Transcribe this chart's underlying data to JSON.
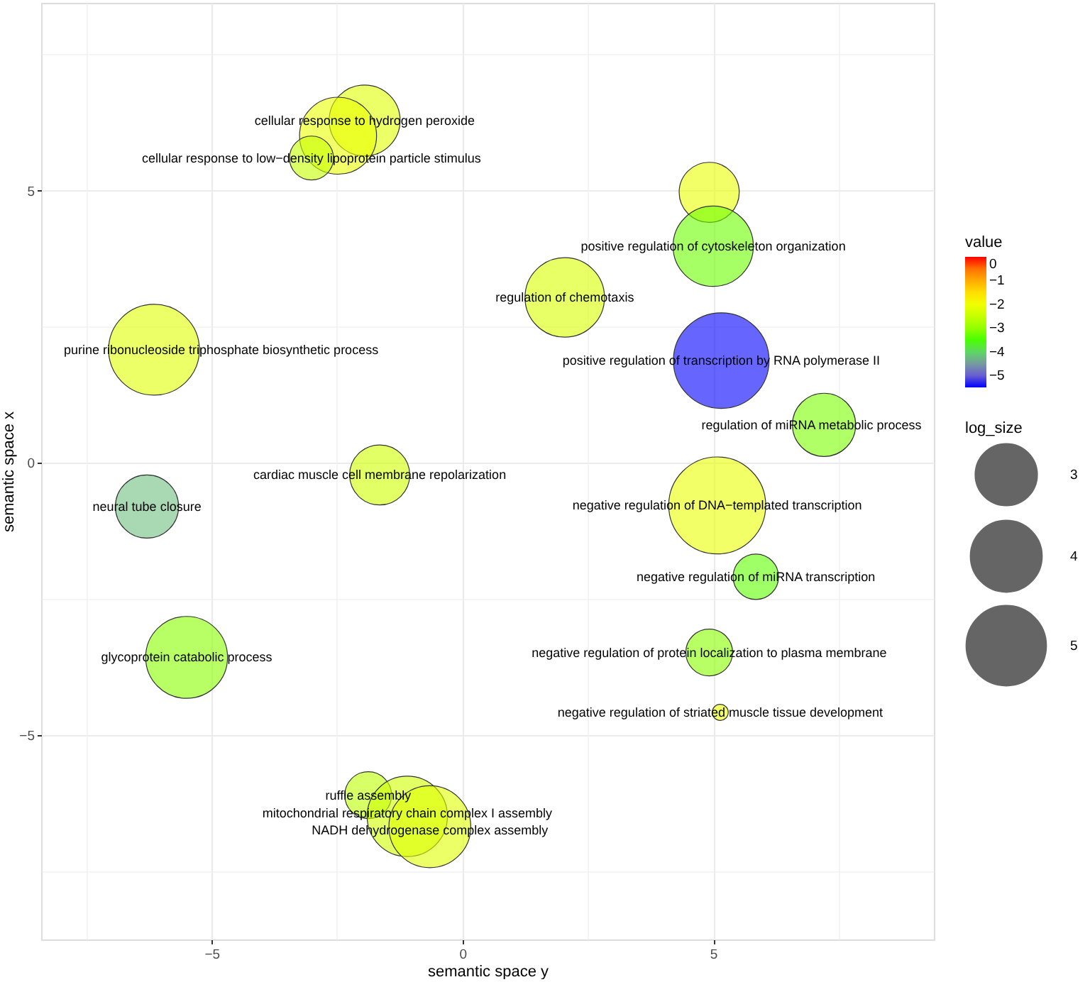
{
  "chart_data": {
    "type": "bubble",
    "xlabel": "semantic space y",
    "ylabel": "semantic space x",
    "clabel": "value",
    "legend_title": "log_size",
    "x": [
      -1.95,
      -2.48,
      -3.01,
      -6.15,
      2.04,
      4.92,
      5.0,
      5.16,
      7.21,
      5.08,
      5.85,
      4.92,
      5.14,
      -1.65,
      -6.29,
      -5.5,
      -1.88,
      -1.1,
      -0.65
    ],
    "values": [
      6.29,
      6.01,
      5.6,
      2.08,
      3.04,
      4.97,
      3.98,
      1.88,
      0.7,
      -0.78,
      -2.09,
      -3.48,
      -4.58,
      -0.22,
      -0.8,
      -3.57,
      -6.1,
      -6.49,
      -6.68
    ],
    "sizes": [
      3.9,
      4.6,
      1.5,
      6.4,
      4.9,
      2.8,
      5.0,
      7.1,
      3.1,
      7.3,
      1.6,
      1.7,
      0.2,
      2.8,
      3.1,
      5.2,
      1.7,
      5.0,
      5.2
    ],
    "cvalues": [
      -2.2,
      -2.1,
      -2.5,
      -2.2,
      -2.3,
      -2.1,
      -3.3,
      -5.5,
      -3.2,
      -2.1,
      -3.4,
      -3.1,
      -2.1,
      -2.4,
      -4.2,
      -3.1,
      -2.6,
      -2.4,
      -2.2
    ],
    "size_legend": [
      3,
      4,
      5
    ],
    "clim": [
      -5.5,
      0
    ],
    "cticks": [
      -5,
      -4,
      -3,
      -2,
      -1,
      0
    ],
    "xlim": [
      -8.4,
      9.4
    ],
    "ylim": [
      -8.75,
      8.45
    ],
    "xticks": [
      {
        "value": -7.5,
        "label": null
      },
      -5,
      {
        "value": -2.5,
        "label": null
      },
      0,
      {
        "value": 2.5,
        "label": null
      },
      5,
      {
        "value": 7.5,
        "label": null
      }
    ],
    "yticks": [
      {
        "value": -7.5,
        "label": null
      },
      -5,
      {
        "value": -2.5,
        "label": null
      },
      0,
      {
        "value": 2.5,
        "label": null
      },
      5,
      {
        "value": 7.5,
        "label": null
      }
    ],
    "grid": true,
    "marker": "circle",
    "annotations": [
      {
        "text": "cellular response to hydrogen peroxide",
        "x": -1.95,
        "y": 6.29
      },
      {
        "text": "cellular response to low−density lipoprotein particle stimulus",
        "x": -3.01,
        "y": 5.6
      },
      {
        "text": "purine ribonucleoside triphosphate biosynthetic process",
        "x": -6.15,
        "y": 2.08
      },
      {
        "text": "regulation of chemotaxis",
        "x": 2.04,
        "y": 3.04
      },
      {
        "text": "positive regulation of cytoskeleton organization",
        "x": 5.0,
        "y": 3.98
      },
      {
        "text": "positive regulation of transcription by RNA polymerase II",
        "x": 5.16,
        "y": 1.88
      },
      {
        "text": "regulation of miRNA metabolic process",
        "x": 7.21,
        "y": 0.7
      },
      {
        "text": "negative regulation of DNA−templated transcription",
        "x": 5.08,
        "y": -0.78
      },
      {
        "text": "negative regulation of miRNA transcription",
        "x": 5.85,
        "y": -2.09
      },
      {
        "text": "negative regulation of protein localization to plasma membrane",
        "x": 4.92,
        "y": -3.48
      },
      {
        "text": "negative regulation of striated muscle tissue development",
        "x": 5.14,
        "y": -4.58
      },
      {
        "text": "cardiac muscle cell membrane repolarization",
        "x": -1.65,
        "y": -0.22
      },
      {
        "text": "neural tube closure",
        "x": -6.29,
        "y": -0.8
      },
      {
        "text": "glycoprotein catabolic process",
        "x": -5.5,
        "y": -3.57
      },
      {
        "text": "ruffle assembly",
        "x": -1.88,
        "y": -6.1
      },
      {
        "text": "mitochondrial respiratory chain complex I assembly",
        "x": -1.1,
        "y": -6.49
      },
      {
        "text": "NADH dehydrogenase complex assembly",
        "x": -0.65,
        "y": -6.68
      }
    ]
  }
}
